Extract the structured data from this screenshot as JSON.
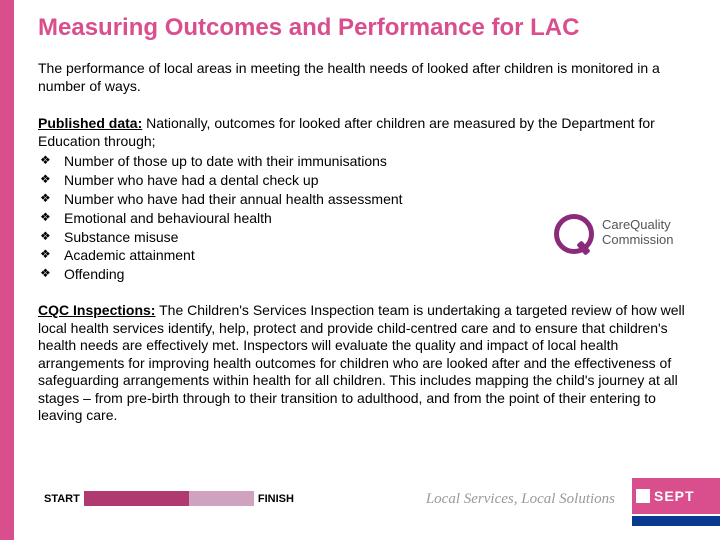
{
  "title": "Measuring Outcomes and Performance for LAC",
  "intro": "The performance of local areas in meeting the health needs of looked after children is monitored in a number of ways.",
  "published": {
    "label": "Published data:",
    "text": " Nationally, outcomes for looked after children are measured by the Department for Education through;",
    "bullets": [
      "Number of those up to date with their immunisations",
      "Number who have had a dental check up",
      "Number who have had their annual health assessment",
      "Emotional and behavioural health",
      "Substance misuse",
      "Academic attainment",
      "Offending"
    ]
  },
  "cqc": {
    "label": "CQC Inspections:",
    "text": " The Children's Services Inspection team is undertaking a targeted review of how well local health services identify, help, protect and provide child-centred care and to ensure that children's health needs are effectively met. Inspectors will evaluate the quality and impact of local health arrangements for improving health outcomes for children who are looked after and the effectiveness of safeguarding arrangements within health for all children. This includes mapping the child's journey at all stages – from pre-birth through to their transition to adulthood, and from the point of their entering to leaving care."
  },
  "logo": {
    "line1": "CareQuality",
    "line2": "Commission"
  },
  "progress": {
    "start_label": "START",
    "finish_label": "FINISH",
    "fill_percent": 62
  },
  "tagline": "Local Services, Local Solutions",
  "brand": "SEPT",
  "colors": {
    "accent_pink": "#d94f8e",
    "cqc_purple": "#8b2a7a",
    "nhs_blue": "#0a3a8f"
  }
}
